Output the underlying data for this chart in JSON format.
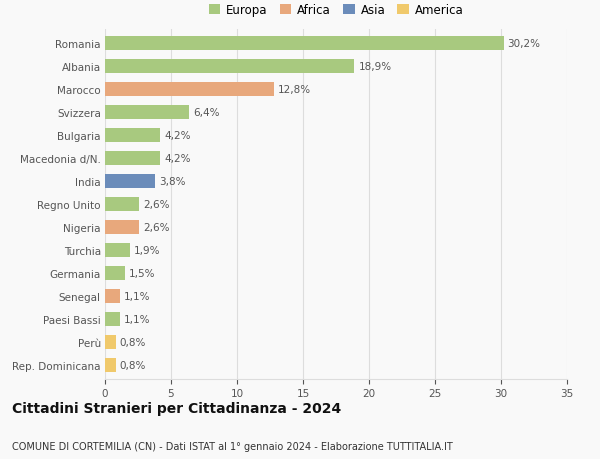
{
  "countries": [
    "Romania",
    "Albania",
    "Marocco",
    "Svizzera",
    "Bulgaria",
    "Macedonia d/N.",
    "India",
    "Regno Unito",
    "Nigeria",
    "Turchia",
    "Germania",
    "Senegal",
    "Paesi Bassi",
    "Perù",
    "Rep. Dominicana"
  ],
  "values": [
    30.2,
    18.9,
    12.8,
    6.4,
    4.2,
    4.2,
    3.8,
    2.6,
    2.6,
    1.9,
    1.5,
    1.1,
    1.1,
    0.8,
    0.8
  ],
  "labels": [
    "30,2%",
    "18,9%",
    "12,8%",
    "6,4%",
    "4,2%",
    "4,2%",
    "3,8%",
    "2,6%",
    "2,6%",
    "1,9%",
    "1,5%",
    "1,1%",
    "1,1%",
    "0,8%",
    "0,8%"
  ],
  "continents": [
    "Europa",
    "Europa",
    "Africa",
    "Europa",
    "Europa",
    "Europa",
    "Asia",
    "Europa",
    "Africa",
    "Europa",
    "Europa",
    "Africa",
    "Europa",
    "America",
    "America"
  ],
  "continent_colors": {
    "Europa": "#a8c97f",
    "Africa": "#e8a87c",
    "Asia": "#6b8cba",
    "America": "#f0c96b"
  },
  "legend_order": [
    "Europa",
    "Africa",
    "Asia",
    "America"
  ],
  "xlim": [
    0,
    35
  ],
  "xticks": [
    0,
    5,
    10,
    15,
    20,
    25,
    30,
    35
  ],
  "title": "Cittadini Stranieri per Cittadinanza - 2024",
  "subtitle": "COMUNE DI CORTEMILIA (CN) - Dati ISTAT al 1° gennaio 2024 - Elaborazione TUTTITALIA.IT",
  "bg_color": "#f9f9f9",
  "grid_color": "#dddddd",
  "bar_height": 0.6,
  "label_fontsize": 7.5,
  "tick_fontsize": 7.5,
  "title_fontsize": 10,
  "subtitle_fontsize": 7,
  "legend_fontsize": 8.5
}
